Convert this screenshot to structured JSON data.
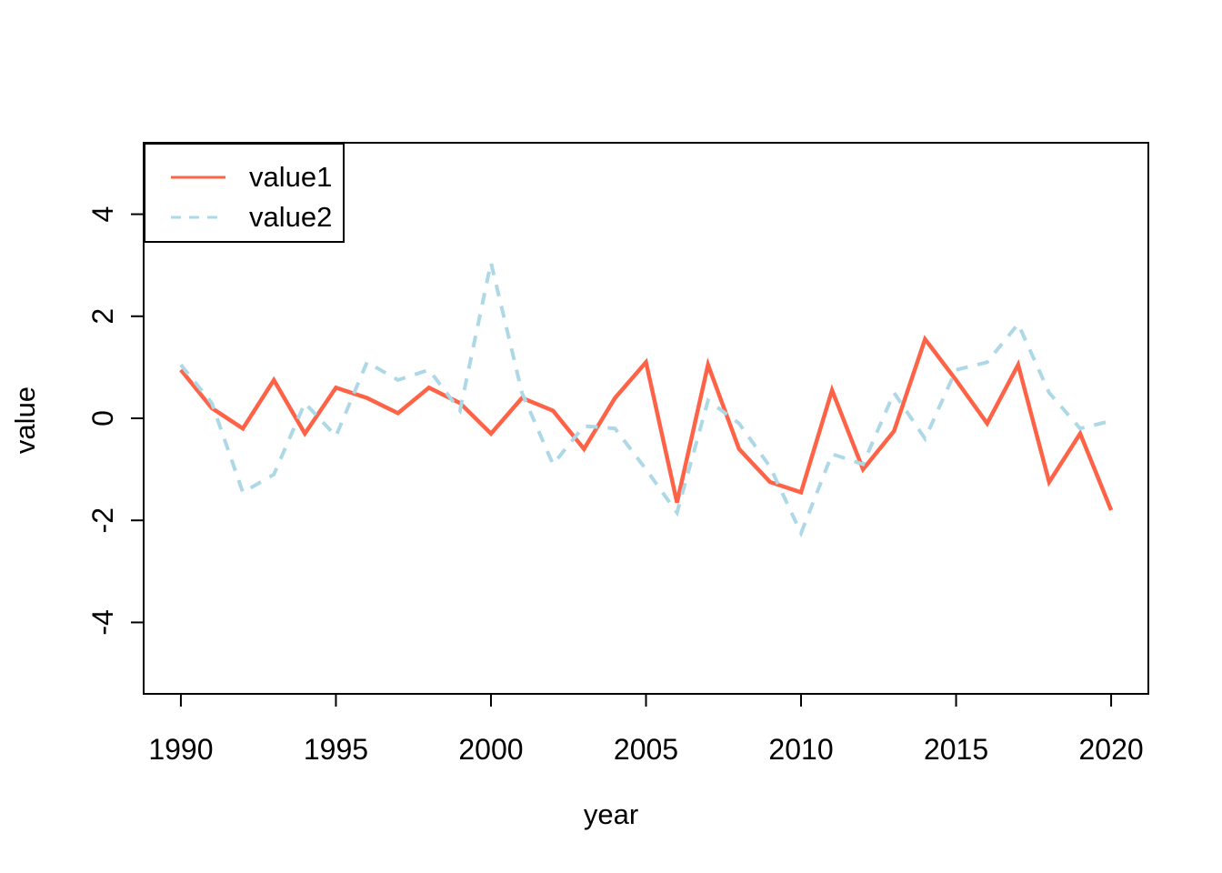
{
  "chart_data": {
    "type": "line",
    "title": "",
    "xlabel": "year",
    "ylabel": "value",
    "x": [
      1990,
      1991,
      1992,
      1993,
      1994,
      1995,
      1996,
      1997,
      1998,
      1999,
      2000,
      2001,
      2002,
      2003,
      2004,
      2005,
      2006,
      2007,
      2008,
      2009,
      2010,
      2011,
      2012,
      2013,
      2014,
      2015,
      2016,
      2017,
      2018,
      2019,
      2020
    ],
    "series": [
      {
        "name": "value1",
        "color": "#FF6347",
        "line_style": "solid",
        "values": [
          0.95,
          0.2,
          -0.2,
          0.75,
          -0.3,
          0.6,
          0.4,
          0.1,
          0.6,
          0.3,
          -0.3,
          0.4,
          0.15,
          -0.6,
          0.4,
          1.1,
          -1.65,
          1.05,
          -0.6,
          -1.25,
          -1.45,
          0.55,
          -1.0,
          -0.25,
          1.55,
          0.75,
          -0.1,
          1.05,
          -1.25,
          -0.3,
          -1.8
        ]
      },
      {
        "name": "value2",
        "color": "#ADD8E6",
        "line_style": "dashed",
        "values": [
          1.05,
          0.3,
          -1.45,
          -1.1,
          0.3,
          -0.35,
          1.1,
          0.75,
          0.95,
          0.15,
          3.05,
          0.5,
          -0.9,
          -0.15,
          -0.2,
          -1.0,
          -1.85,
          0.35,
          -0.1,
          -0.95,
          -2.25,
          -0.7,
          -0.9,
          0.5,
          -0.4,
          0.95,
          1.1,
          1.85,
          0.5,
          -0.2,
          -0.05
        ]
      }
    ],
    "xticks": [
      1990,
      1995,
      2000,
      2005,
      2010,
      2015,
      2020
    ],
    "yticks": [
      -4,
      -2,
      0,
      2,
      4
    ],
    "xlim": [
      1988.8,
      2021.2
    ],
    "ylim": [
      -5.4,
      5.4
    ],
    "grid": false,
    "legend_position": "topleft"
  },
  "legend": {
    "items": [
      {
        "label": "value1"
      },
      {
        "label": "value2"
      }
    ]
  },
  "axes": {
    "x_title": "year",
    "y_title": "value"
  }
}
